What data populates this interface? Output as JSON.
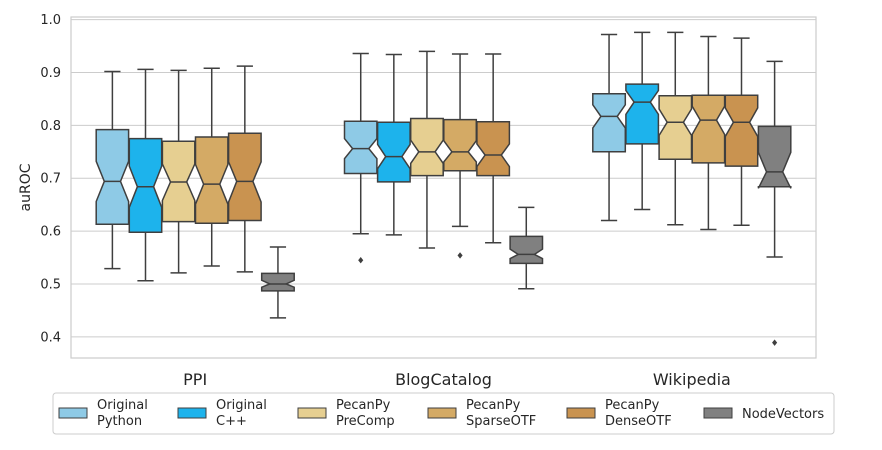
{
  "chart_data": {
    "type": "box",
    "ylabel": "auROC",
    "ylim": [
      0.36,
      1.005
    ],
    "yticks": [
      "0.4",
      "0.5",
      "0.6",
      "0.7",
      "0.8",
      "0.9",
      "1.0"
    ],
    "grid": true,
    "legend_position": "bottom",
    "categories": [
      "PPI",
      "BlogCatalog",
      "Wikipedia"
    ],
    "series": [
      {
        "name": "Original\nPython",
        "color": "#8ecae6",
        "boxes": [
          {
            "whislo": 0.529,
            "q1": 0.613,
            "med": 0.694,
            "q3": 0.792,
            "whishi": 0.902,
            "notch_lo": 0.656,
            "notch_hi": 0.732,
            "fliers": []
          },
          {
            "whislo": 0.595,
            "q1": 0.709,
            "med": 0.756,
            "q3": 0.808,
            "whishi": 0.936,
            "notch_lo": 0.737,
            "notch_hi": 0.775,
            "fliers": [
              0.545
            ]
          },
          {
            "whislo": 0.62,
            "q1": 0.75,
            "med": 0.817,
            "q3": 0.86,
            "whishi": 0.972,
            "notch_lo": 0.795,
            "notch_hi": 0.839,
            "fliers": []
          }
        ]
      },
      {
        "name": "Original\nC++",
        "color": "#1db3ec",
        "boxes": [
          {
            "whislo": 0.506,
            "q1": 0.598,
            "med": 0.684,
            "q3": 0.775,
            "whishi": 0.906,
            "notch_lo": 0.645,
            "notch_hi": 0.723,
            "fliers": []
          },
          {
            "whislo": 0.593,
            "q1": 0.693,
            "med": 0.741,
            "q3": 0.806,
            "whishi": 0.934,
            "notch_lo": 0.718,
            "notch_hi": 0.764,
            "fliers": []
          },
          {
            "whislo": 0.641,
            "q1": 0.765,
            "med": 0.844,
            "q3": 0.878,
            "whishi": 0.976,
            "notch_lo": 0.821,
            "notch_hi": 0.866,
            "fliers": []
          }
        ]
      },
      {
        "name": "PecanPy\nPreComp",
        "color": "#e6cf91",
        "boxes": [
          {
            "whislo": 0.521,
            "q1": 0.618,
            "med": 0.693,
            "q3": 0.77,
            "whishi": 0.904,
            "notch_lo": 0.658,
            "notch_hi": 0.727,
            "fliers": []
          },
          {
            "whislo": 0.568,
            "q1": 0.705,
            "med": 0.75,
            "q3": 0.813,
            "whishi": 0.94,
            "notch_lo": 0.728,
            "notch_hi": 0.772,
            "fliers": []
          },
          {
            "whislo": 0.612,
            "q1": 0.736,
            "med": 0.806,
            "q3": 0.856,
            "whishi": 0.976,
            "notch_lo": 0.781,
            "notch_hi": 0.831,
            "fliers": []
          }
        ]
      },
      {
        "name": "PecanPy\nSparseOTF",
        "color": "#d4aa65",
        "boxes": [
          {
            "whislo": 0.534,
            "q1": 0.615,
            "med": 0.689,
            "q3": 0.778,
            "whishi": 0.908,
            "notch_lo": 0.651,
            "notch_hi": 0.726,
            "fliers": []
          },
          {
            "whislo": 0.609,
            "q1": 0.714,
            "med": 0.75,
            "q3": 0.811,
            "whishi": 0.935,
            "notch_lo": 0.731,
            "notch_hi": 0.771,
            "fliers": [
              0.554
            ]
          },
          {
            "whislo": 0.603,
            "q1": 0.729,
            "med": 0.81,
            "q3": 0.857,
            "whishi": 0.968,
            "notch_lo": 0.783,
            "notch_hi": 0.836,
            "fliers": []
          }
        ]
      },
      {
        "name": "PecanPy\nDenseOTF",
        "color": "#c99350",
        "boxes": [
          {
            "whislo": 0.523,
            "q1": 0.62,
            "med": 0.694,
            "q3": 0.785,
            "whishi": 0.912,
            "notch_lo": 0.655,
            "notch_hi": 0.731,
            "fliers": []
          },
          {
            "whislo": 0.578,
            "q1": 0.705,
            "med": 0.744,
            "q3": 0.807,
            "whishi": 0.935,
            "notch_lo": 0.722,
            "notch_hi": 0.765,
            "fliers": []
          },
          {
            "whislo": 0.611,
            "q1": 0.723,
            "med": 0.806,
            "q3": 0.857,
            "whishi": 0.965,
            "notch_lo": 0.779,
            "notch_hi": 0.833,
            "fliers": []
          }
        ]
      },
      {
        "name": "NodeVectors",
        "color": "#808080",
        "boxes": [
          {
            "whislo": 0.436,
            "q1": 0.487,
            "med": 0.5,
            "q3": 0.52,
            "whishi": 0.57,
            "notch_lo": 0.494,
            "notch_hi": 0.507,
            "fliers": []
          },
          {
            "whislo": 0.491,
            "q1": 0.539,
            "med": 0.556,
            "q3": 0.59,
            "whishi": 0.645,
            "notch_lo": 0.548,
            "notch_hi": 0.566,
            "fliers": []
          },
          {
            "whislo": 0.551,
            "q1": 0.684,
            "med": 0.712,
            "q3": 0.798,
            "whishi": 0.921,
            "notch_lo": 0.681,
            "notch_hi": 0.749,
            "fliers": [
              0.389
            ]
          }
        ]
      }
    ]
  }
}
